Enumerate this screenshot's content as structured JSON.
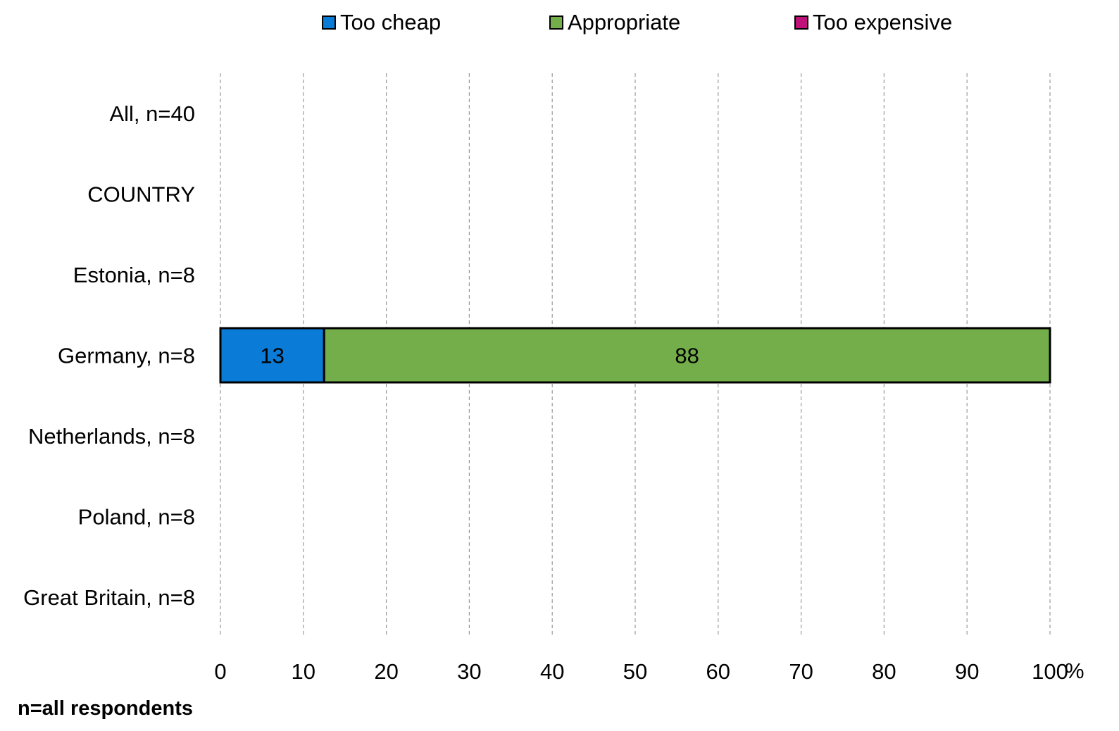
{
  "chart_data": {
    "type": "bar",
    "orientation": "horizontal",
    "stacked": true,
    "categories": [
      "All, n=40",
      "COUNTRY",
      "Estonia, n=8",
      "Germany, n=8",
      "Netherlands, n=8",
      "Poland, n=8",
      "Great Britain, n=8"
    ],
    "series": [
      {
        "name": "Too cheap",
        "color": "#0a7bd6",
        "values": [
          null,
          null,
          null,
          12.5,
          null,
          null,
          null
        ],
        "labels": [
          "",
          "",
          "",
          "13",
          "",
          "",
          ""
        ]
      },
      {
        "name": "Appropriate",
        "color": "#73ae4a",
        "values": [
          null,
          null,
          null,
          87.5,
          null,
          null,
          null
        ],
        "labels": [
          "",
          "",
          "",
          "88",
          "",
          "",
          ""
        ]
      },
      {
        "name": "Too expensive",
        "color": "#c0117a",
        "values": [
          null,
          null,
          null,
          0,
          null,
          null,
          null
        ],
        "labels": [
          "",
          "",
          "",
          "",
          "",
          "",
          ""
        ]
      }
    ],
    "xlim": [
      0,
      100
    ],
    "xticks": [
      0,
      10,
      20,
      30,
      40,
      50,
      60,
      70,
      80,
      90,
      100
    ],
    "xunit": "%",
    "grid": "vertical dashed",
    "legend_position": "top"
  },
  "footnote": "n=all respondents"
}
